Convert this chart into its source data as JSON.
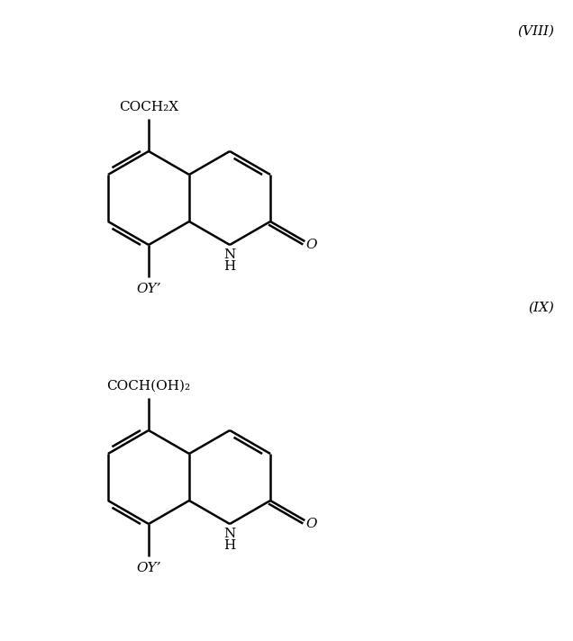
{
  "background_color": "#ffffff",
  "figure_width": 6.36,
  "figure_height": 7.12,
  "label_VIII": "(VIII)",
  "label_IX": "(IX)",
  "struct1_substituent": "COCH₂X",
  "struct1_oxy": "OY’",
  "struct1_NH": "N\nH",
  "struct1_O": "O",
  "struct2_substituent": "COCH(OH)₂",
  "struct2_oxy": "OY’",
  "struct2_NH": "N\nH",
  "struct2_O": "O",
  "line_color": "#000000",
  "text_color": "#000000",
  "line_width": 1.8,
  "font_size": 11
}
